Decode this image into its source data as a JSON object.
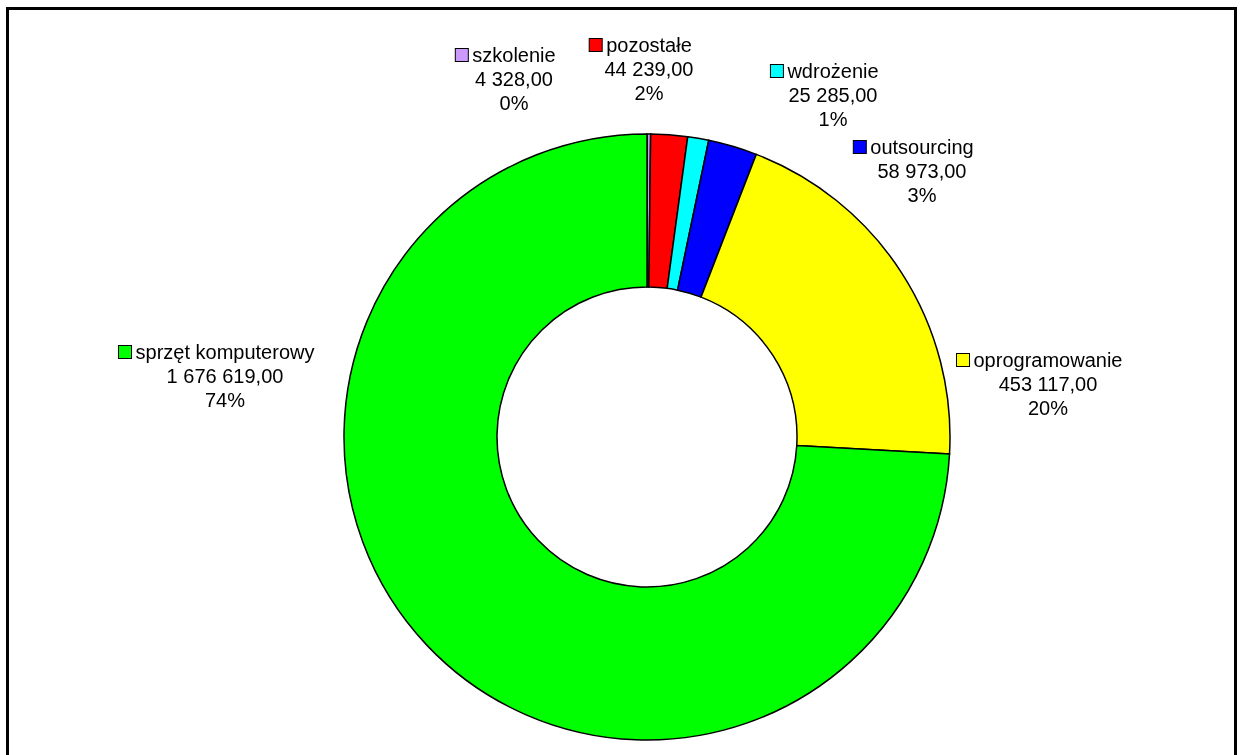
{
  "chart_data": {
    "type": "donut",
    "categories": [
      "szkolenie",
      "pozostałe",
      "wdrożenie",
      "outsourcing",
      "oprogramowanie",
      "sprzęt komputerowy"
    ],
    "values": [
      4328,
      44239,
      25285,
      58973,
      453117,
      1676619
    ],
    "colors": [
      "#cc99ff",
      "#ff0000",
      "#00ffff",
      "#0000ff",
      "#ffff00",
      "#00ff00"
    ],
    "value_labels": [
      "4 328,00\n0%",
      "44 239,00\n2%",
      "25 285,00\n1%",
      "58 973,00\n3%",
      "453 117,00\n20%",
      "1 676 619,00\n74%"
    ],
    "legend": "top"
  }
}
